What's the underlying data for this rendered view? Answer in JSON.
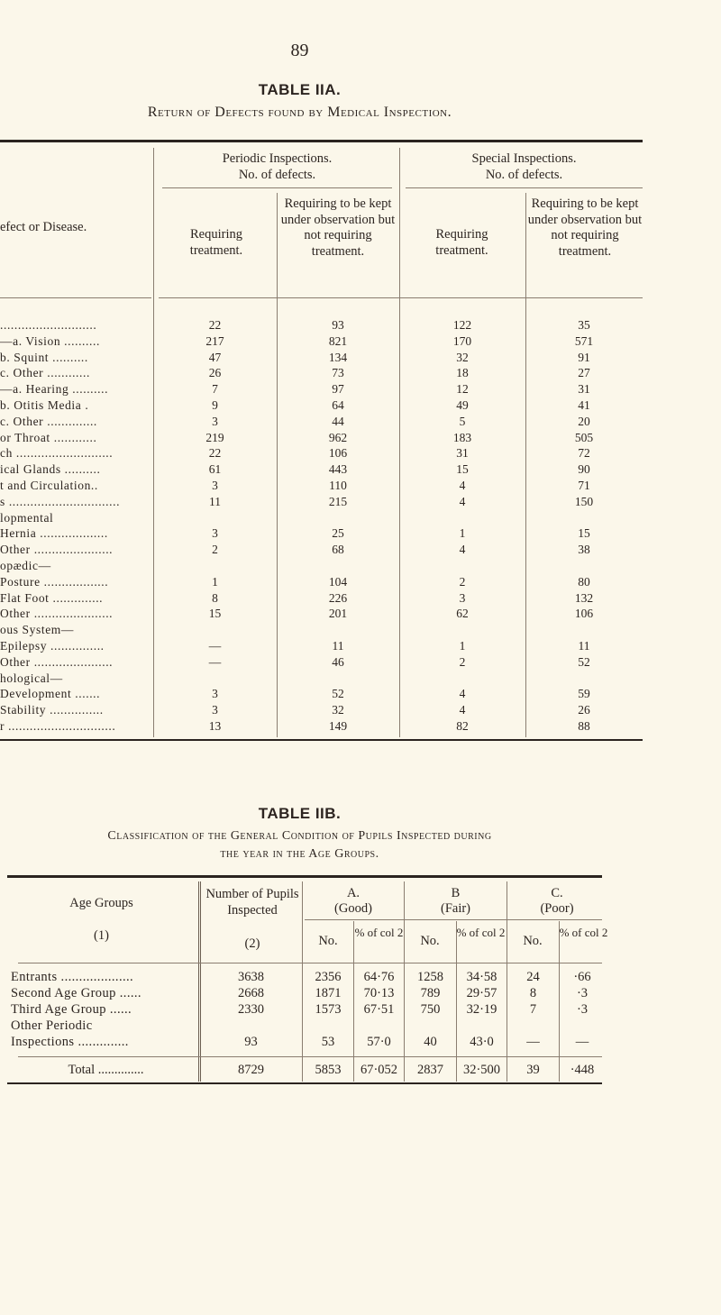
{
  "page_number": "89",
  "table_a": {
    "title": "TABLE IIA.",
    "subtitle": "Return of Defects found by Medical Inspection.",
    "col_label": "efect or Disease.",
    "group1": "Periodic Inspections.\nNo. of defects.",
    "group2": "Special Inspections.\nNo. of defects.",
    "req_treatment": "Requiring treatment.",
    "req_obs": "Requiring to be kept under observation but not requiring treatment.",
    "rows": [
      [
        "...........................",
        "22",
        "93",
        "122",
        "35"
      ],
      [
        "—a. Vision ..........",
        "217",
        "821",
        "170",
        "571"
      ],
      [
        "  b. Squint ..........",
        "47",
        "134",
        "32",
        "91"
      ],
      [
        "  c. Other ............",
        "26",
        "73",
        "18",
        "27"
      ],
      [
        "—a. Hearing ..........",
        "7",
        "97",
        "12",
        "31"
      ],
      [
        "  b. Otitis Media .",
        "9",
        "64",
        "49",
        "41"
      ],
      [
        "  c. Other ..............",
        "3",
        "44",
        "5",
        "20"
      ],
      [
        " or Throat ............",
        "219",
        "962",
        "183",
        "505"
      ],
      [
        "ch ...........................",
        "22",
        "106",
        "31",
        "72"
      ],
      [
        "ical Glands ..........",
        "61",
        "443",
        "15",
        "90"
      ],
      [
        "t and Circulation..",
        "3",
        "110",
        "4",
        "71"
      ],
      [
        "s ...............................",
        "11",
        "215",
        "4",
        "150"
      ],
      [
        "lopmental",
        "",
        "",
        "",
        ""
      ],
      [
        "Hernia ...................",
        "3",
        "25",
        "1",
        "15"
      ],
      [
        "Other ......................",
        "2",
        "68",
        "4",
        "38"
      ],
      [
        "opædic—",
        "",
        "",
        "",
        ""
      ],
      [
        "Posture ..................",
        "1",
        "104",
        "2",
        "80"
      ],
      [
        "Flat Foot ..............",
        "8",
        "226",
        "3",
        "132"
      ],
      [
        "Other ......................",
        "15",
        "201",
        "62",
        "106"
      ],
      [
        "ous System—",
        "",
        "",
        "",
        ""
      ],
      [
        "Epilepsy ...............",
        "—",
        "11",
        "1",
        "11"
      ],
      [
        "Other ......................",
        "—",
        "46",
        "2",
        "52"
      ],
      [
        "hological—",
        "",
        "",
        "",
        ""
      ],
      [
        "Development .......",
        "3",
        "52",
        "4",
        "59"
      ],
      [
        "Stability ...............",
        "3",
        "32",
        "4",
        "26"
      ],
      [
        "r ..............................",
        "13",
        "149",
        "82",
        "88"
      ]
    ]
  },
  "table_b": {
    "title": "TABLE IIB.",
    "subtitle1": "Classification of the General Condition of Pupils Inspected during",
    "subtitle2": "the year in the Age Groups.",
    "h_age": "Age Groups",
    "h_age_num": "(1)",
    "h_pupils": "Number of Pupils Inspected",
    "h_pupils_num": "(2)",
    "h_a": "A.",
    "h_a2": "(Good)",
    "h_b": "B",
    "h_b2": "(Fair)",
    "h_c": "C.",
    "h_c2": "(Poor)",
    "h_no": "No.",
    "h_pct": "% of col 2",
    "rows": [
      [
        "Entrants ....................",
        "3638",
        "2356",
        "64·76",
        "1258",
        "34·58",
        "24",
        "·66"
      ],
      [
        "Second Age Group ......",
        "2668",
        "1871",
        "70·13",
        "789",
        "29·57",
        "8",
        "·3"
      ],
      [
        "Third Age Group ......",
        "2330",
        "1573",
        "67·51",
        "750",
        "32·19",
        "7",
        "·3"
      ],
      [
        "Other Periodic",
        "",
        "",
        "",
        "",
        "",
        "",
        ""
      ],
      [
        "  Inspections ..............",
        "93",
        "53",
        "57·0",
        "40",
        "43·0",
        "—",
        "—"
      ]
    ],
    "total": [
      "Total ..............",
      "8729",
      "5853",
      "67·052",
      "2837",
      "32·500",
      "39",
      "·448"
    ]
  }
}
